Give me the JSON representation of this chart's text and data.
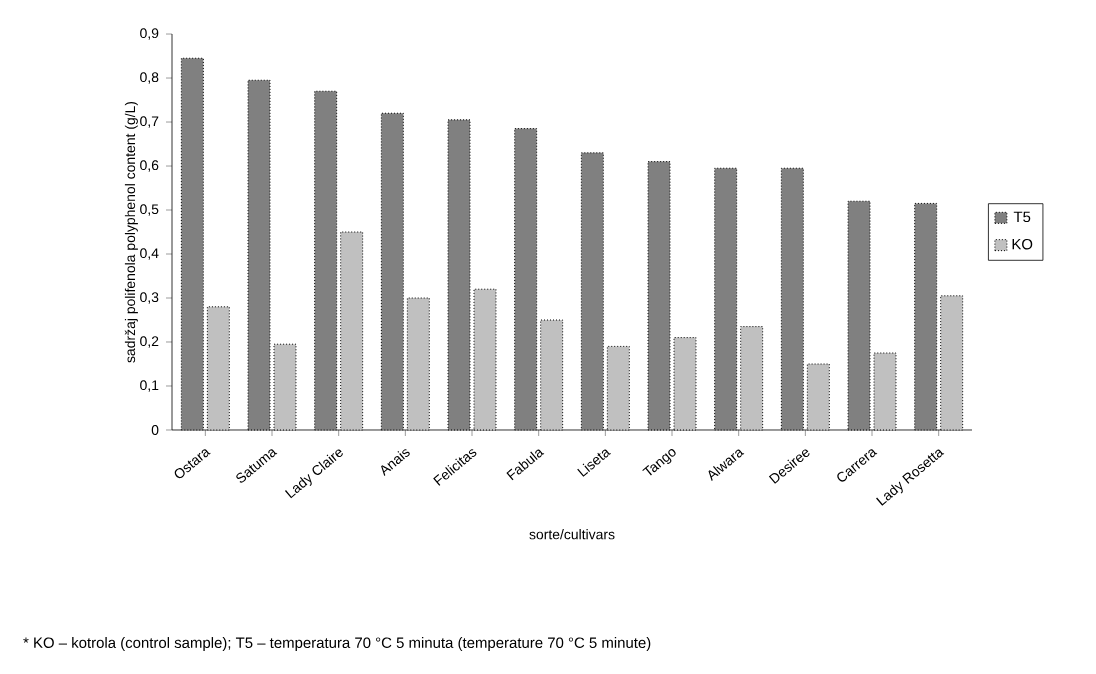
{
  "chart_data": {
    "type": "bar",
    "categories": [
      "Ostara",
      "Satuma",
      "Lady Claire",
      "Anais",
      "Felicitas",
      "Fabula",
      "Liseta",
      "Tango",
      "Alwara",
      "Desiree",
      "Carrera",
      "Lady Rosetta"
    ],
    "series": [
      {
        "name": "T5",
        "color": "#808080",
        "values": [
          0.845,
          0.795,
          0.77,
          0.72,
          0.705,
          0.685,
          0.63,
          0.61,
          0.595,
          0.595,
          0.52,
          0.515
        ]
      },
      {
        "name": "KO",
        "color": "#c0c0c0",
        "values": [
          0.28,
          0.195,
          0.45,
          0.3,
          0.32,
          0.25,
          0.19,
          0.21,
          0.235,
          0.15,
          0.175,
          0.305
        ]
      }
    ],
    "xlabel": "sorte/cultivars",
    "ylabel": "sadržaj polifenola polyphenol content (g/L)",
    "ylim": [
      0,
      0.9
    ],
    "yticks": [
      0,
      {
        "value": 0.1,
        "label": "0,1"
      },
      {
        "value": 0.2,
        "label": "0,2"
      },
      {
        "value": 0.3,
        "label": "0,3"
      },
      {
        "value": 0.4,
        "label": "0,4"
      },
      {
        "value": 0.5,
        "label": "0,5"
      },
      {
        "value": 0.6,
        "label": "0,6"
      },
      {
        "value": 0.7,
        "label": "0,7"
      },
      {
        "value": 0.8,
        "label": "0,8"
      },
      {
        "value": 0.9,
        "label": "0,9"
      }
    ],
    "legend": "right",
    "grid": false,
    "annotations": [
      "* KO – kotrola (control sample); T5 – temperatura 70 °C 5 minuta (temperature 70 °C 5 minute)"
    ]
  }
}
